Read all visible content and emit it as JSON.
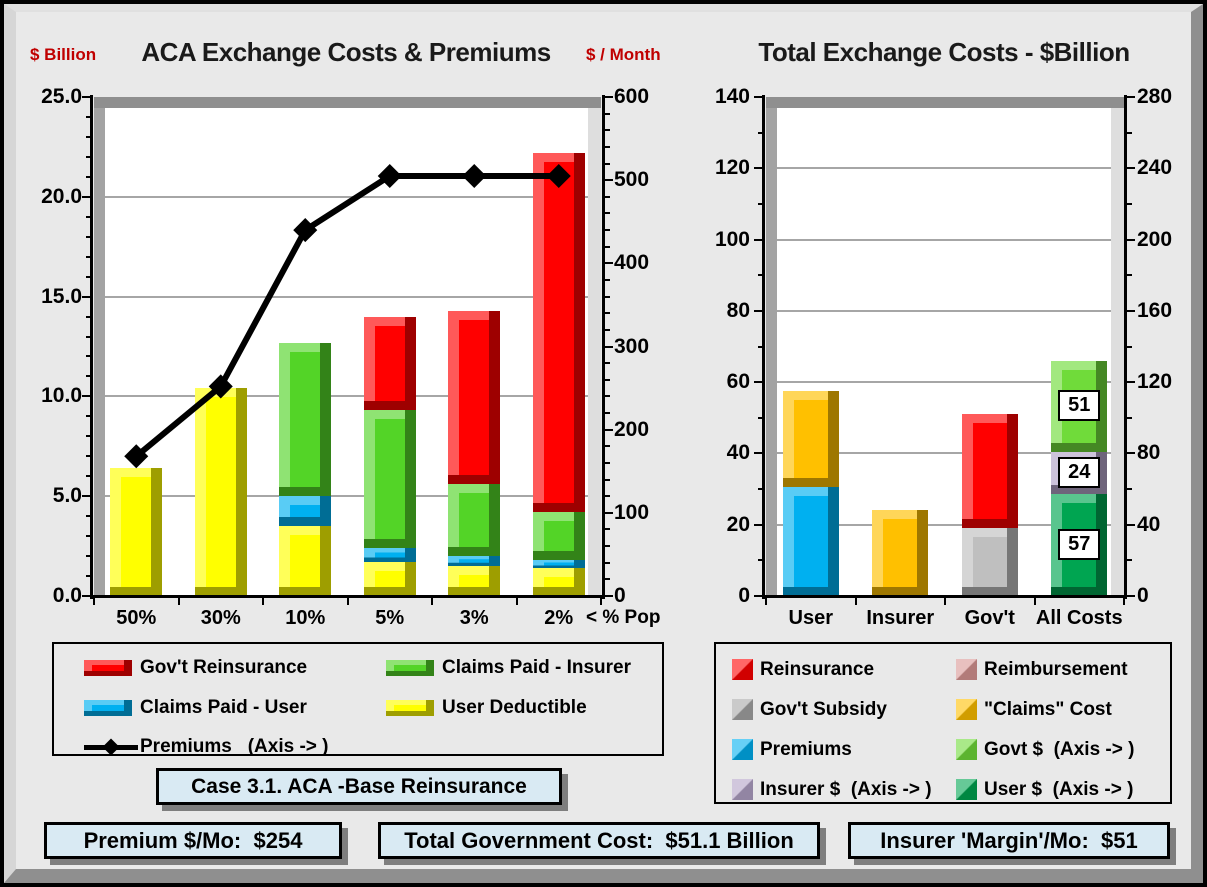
{
  "colors": {
    "background": "#E9E9E9",
    "plot_bg": "#FFFFFF",
    "grid": "#A6A6A6",
    "axis_title_red": "#C00000",
    "info_box_fill": "#D9EAF3",
    "yellow": "#FFFF00",
    "blue": "#00B0F0",
    "green": "#53D427",
    "red": "#FF0000",
    "gold": "#FFC000",
    "gray": "#BFBFBF",
    "purple": "#B2A2C7",
    "dark_green": "#00A551",
    "light_green": "#70DB3A",
    "pink": "#D99694",
    "line_black": "#000000"
  },
  "chart_data": [
    {
      "type": "bar",
      "subtype": "stacked-column-with-line",
      "title": "ACA Exchange Costs & Premiums",
      "left_axis_title": "$ Billion",
      "right_axis_title": "$ / Month",
      "x_axis_note": "< % Pop",
      "categories": [
        "50%",
        "30%",
        "10%",
        "5%",
        "3%",
        "2%"
      ],
      "ylim_left": [
        0,
        25
      ],
      "ylim_right": [
        0,
        600
      ],
      "left_ticks": [
        0,
        5,
        10,
        15,
        20,
        25
      ],
      "left_tick_labels": [
        "0.0",
        "5.0",
        "10.0",
        "15.0",
        "20.0",
        "25.0"
      ],
      "right_ticks": [
        0,
        100,
        200,
        300,
        400,
        500,
        600
      ],
      "right_tick_labels": [
        "0",
        "100",
        "200",
        "300",
        "400",
        "500",
        "600"
      ],
      "grid": true,
      "series": [
        {
          "name": "User Deductible",
          "color": "#FFFF00",
          "values": [
            6.4,
            10.4,
            3.5,
            1.7,
            1.5,
            1.4
          ]
        },
        {
          "name": "Claims Paid - User",
          "color": "#00B0F0",
          "values": [
            0,
            0,
            1.5,
            0.7,
            0.5,
            0.4
          ]
        },
        {
          "name": "Claims Paid - Insurer",
          "color": "#53D427",
          "values": [
            0,
            0,
            7.7,
            6.9,
            3.6,
            2.4
          ]
        },
        {
          "name": "Gov't Reinsurance",
          "color": "#FF0000",
          "values": [
            0,
            0,
            0,
            4.7,
            8.7,
            18.0
          ]
        }
      ],
      "line": {
        "name": "Premiums",
        "axis": "right",
        "color": "#000000",
        "values": [
          168,
          252,
          440,
          505,
          505,
          505
        ]
      },
      "legend": {
        "position": "below",
        "items": [
          {
            "label": "Gov't Reinsurance",
            "color": "#FF0000",
            "marker": "bar"
          },
          {
            "label": "Claims Paid - Insurer",
            "color": "#53D427",
            "marker": "bar"
          },
          {
            "label": "Claims Paid - User",
            "color": "#00B0F0",
            "marker": "bar"
          },
          {
            "label": "User Deductible",
            "color": "#FFFF00",
            "marker": "bar"
          },
          {
            "label": "Premiums   (Axis -> )",
            "color": "#000000",
            "marker": "line"
          }
        ]
      }
    },
    {
      "type": "bar",
      "subtype": "stacked-column",
      "title": "Total Exchange Costs - $Billion",
      "categories": [
        "User",
        "Insurer",
        "Gov't",
        "All Costs"
      ],
      "ylim_left": [
        0,
        140
      ],
      "ylim_right": [
        0,
        280
      ],
      "left_ticks": [
        0,
        20,
        40,
        60,
        80,
        100,
        120,
        140
      ],
      "left_tick_labels": [
        "0",
        "20",
        "40",
        "60",
        "80",
        "100",
        "120",
        "140"
      ],
      "right_ticks": [
        0,
        40,
        80,
        120,
        160,
        200,
        240,
        280
      ],
      "right_tick_labels": [
        "0",
        "40",
        "80",
        "120",
        "160",
        "200",
        "240",
        "280"
      ],
      "grid": true,
      "series": [
        {
          "name": "Premiums",
          "color": "#00B0F0",
          "values": [
            30.5,
            0,
            0,
            0
          ]
        },
        {
          "name": "Gov't Subsidy",
          "color": "#BFBFBF",
          "values": [
            0,
            0,
            19.1,
            0
          ]
        },
        {
          "name": "\"Claims\" Cost",
          "color": "#FFC000",
          "values": [
            27,
            24,
            0,
            0
          ]
        },
        {
          "name": "Reinsurance",
          "color": "#FF0000",
          "values": [
            0,
            0,
            32.0,
            0
          ]
        },
        {
          "name": "User $ (Axis -> )",
          "color": "#00A551",
          "values": [
            0,
            0,
            0,
            28.5
          ],
          "data_label": {
            "category": 3,
            "text": "57"
          }
        },
        {
          "name": "Insurer $ (Axis -> )",
          "color": "#B2A2C7",
          "values": [
            0,
            0,
            0,
            12
          ],
          "data_label": {
            "category": 3,
            "text": "24"
          }
        },
        {
          "name": "Govt $ (Axis -> )",
          "color": "#70DB3A",
          "values": [
            0,
            0,
            0,
            25.5
          ],
          "data_label": {
            "category": 3,
            "text": "51"
          }
        }
      ],
      "legend": {
        "position": "below",
        "items": [
          {
            "label": "Reinsurance",
            "color": "#FF0000",
            "marker": "square"
          },
          {
            "label": "Reimbursement",
            "color": "#D99694",
            "marker": "square"
          },
          {
            "label": "Gov't Subsidy",
            "color": "#A6A6A6",
            "marker": "square"
          },
          {
            "label": "\"Claims\" Cost",
            "color": "#FFC000",
            "marker": "square"
          },
          {
            "label": "Premiums",
            "color": "#00B0F0",
            "marker": "square"
          },
          {
            "label": "Govt $  (Axis -> )",
            "color": "#70DB3A",
            "marker": "square"
          },
          {
            "label": "Insurer $  (Axis -> )",
            "color": "#B2A2C7",
            "marker": "square"
          },
          {
            "label": "User $  (Axis -> )",
            "color": "#00A551",
            "marker": "square"
          }
        ]
      }
    }
  ],
  "footer": {
    "case_label": "Case 3.1. ACA -Base Reinsurance",
    "stats": [
      {
        "text": "Premium $/Mo:  $254"
      },
      {
        "text": "Total Government Cost:  $51.1 Billion"
      },
      {
        "text": "Insurer 'Margin'/Mo:  $51"
      }
    ]
  }
}
